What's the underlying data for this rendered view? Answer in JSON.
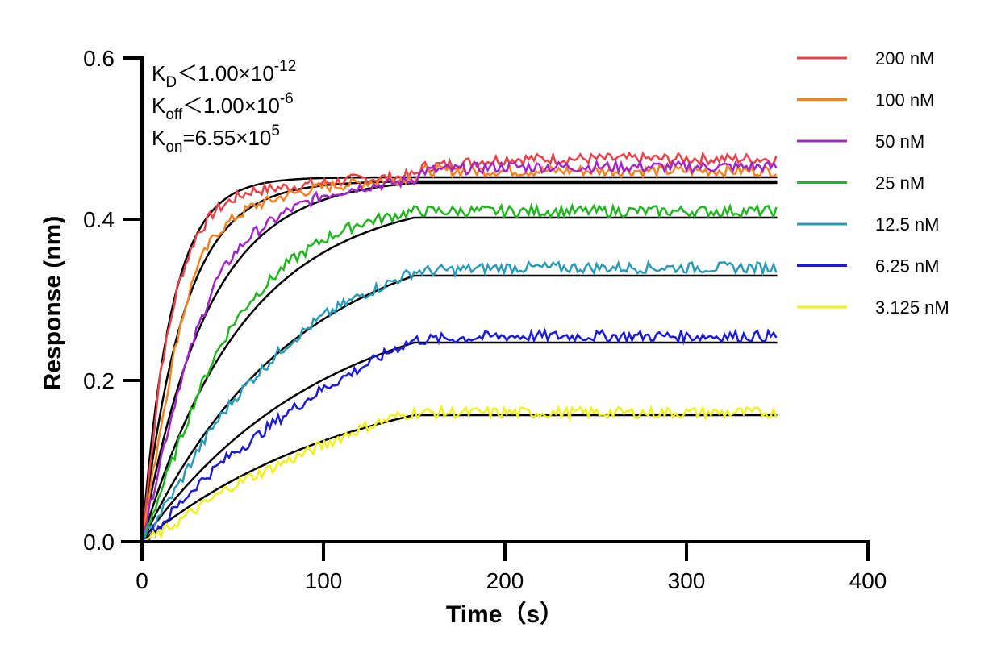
{
  "chart_data": {
    "type": "line",
    "xlabel": "Time（s）",
    "ylabel": "Response (nm)",
    "xlim": [
      0,
      400
    ],
    "ylim": [
      0,
      0.6
    ],
    "x_ticks": [
      0,
      100,
      200,
      300,
      400
    ],
    "x_tick_labels": [
      "0",
      "100",
      "200",
      "300",
      "400"
    ],
    "y_ticks": [
      0.0,
      0.2,
      0.4,
      0.6
    ],
    "y_tick_labels": [
      "0.0",
      "0.2",
      "0.4",
      "0.6"
    ],
    "grid": false,
    "legend_position": "top-right",
    "annotations": [
      {
        "main": "K",
        "sub": "D",
        "rest": "＜1.00×10",
        "sup": "-12"
      },
      {
        "main": "K",
        "sub": "off",
        "rest": "＜1.00×10",
        "sup": "-6"
      },
      {
        "main": "K",
        "sub": "on",
        "rest": "=6.55×10",
        "sup": "5"
      }
    ],
    "association_end": 150,
    "series": [
      {
        "name": "200 nM",
        "color": "#e8434a",
        "plateau": 0.47,
        "fit": 0.452,
        "points": [
          [
            0,
            0
          ],
          [
            10,
            0.21
          ],
          [
            20,
            0.32
          ],
          [
            30,
            0.38
          ],
          [
            40,
            0.41
          ],
          [
            50,
            0.425
          ],
          [
            60,
            0.435
          ],
          [
            80,
            0.44
          ],
          [
            100,
            0.445
          ],
          [
            120,
            0.45
          ],
          [
            140,
            0.452
          ],
          [
            150,
            0.455
          ],
          [
            155,
            0.465
          ],
          [
            200,
            0.475
          ],
          [
            250,
            0.475
          ],
          [
            300,
            0.475
          ],
          [
            350,
            0.475
          ]
        ]
      },
      {
        "name": "100 nM",
        "color": "#f58220",
        "plateau": 0.46,
        "fit": 0.447,
        "points": [
          [
            0,
            0
          ],
          [
            10,
            0.14
          ],
          [
            20,
            0.26
          ],
          [
            30,
            0.34
          ],
          [
            40,
            0.38
          ],
          [
            50,
            0.4
          ],
          [
            60,
            0.415
          ],
          [
            80,
            0.43
          ],
          [
            100,
            0.44
          ],
          [
            120,
            0.445
          ],
          [
            140,
            0.45
          ],
          [
            150,
            0.452
          ],
          [
            155,
            0.46
          ],
          [
            200,
            0.46
          ],
          [
            250,
            0.46
          ],
          [
            300,
            0.46
          ],
          [
            350,
            0.46
          ]
        ]
      },
      {
        "name": "50 nM",
        "color": "#a125c8",
        "plateau": 0.465,
        "fit": 0.445,
        "points": [
          [
            0,
            0
          ],
          [
            10,
            0.1
          ],
          [
            20,
            0.19
          ],
          [
            30,
            0.26
          ],
          [
            40,
            0.32
          ],
          [
            50,
            0.355
          ],
          [
            60,
            0.38
          ],
          [
            80,
            0.41
          ],
          [
            100,
            0.43
          ],
          [
            120,
            0.44
          ],
          [
            140,
            0.445
          ],
          [
            150,
            0.45
          ],
          [
            155,
            0.46
          ],
          [
            200,
            0.465
          ],
          [
            250,
            0.465
          ],
          [
            300,
            0.465
          ],
          [
            350,
            0.465
          ]
        ]
      },
      {
        "name": "25 nM",
        "color": "#22b522",
        "plateau": 0.41,
        "fit": 0.402,
        "points": [
          [
            0,
            0
          ],
          [
            10,
            0.06
          ],
          [
            20,
            0.12
          ],
          [
            30,
            0.18
          ],
          [
            40,
            0.23
          ],
          [
            50,
            0.27
          ],
          [
            60,
            0.3
          ],
          [
            80,
            0.345
          ],
          [
            100,
            0.375
          ],
          [
            120,
            0.395
          ],
          [
            140,
            0.405
          ],
          [
            150,
            0.41
          ],
          [
            200,
            0.41
          ],
          [
            250,
            0.41
          ],
          [
            300,
            0.41
          ],
          [
            350,
            0.41
          ]
        ]
      },
      {
        "name": "12.5 nM",
        "color": "#2a9bb5",
        "plateau": 0.34,
        "fit": 0.33,
        "points": [
          [
            0,
            0
          ],
          [
            10,
            0.035
          ],
          [
            20,
            0.07
          ],
          [
            30,
            0.11
          ],
          [
            40,
            0.145
          ],
          [
            50,
            0.175
          ],
          [
            60,
            0.2
          ],
          [
            80,
            0.245
          ],
          [
            100,
            0.28
          ],
          [
            120,
            0.305
          ],
          [
            140,
            0.325
          ],
          [
            150,
            0.335
          ],
          [
            200,
            0.34
          ],
          [
            250,
            0.34
          ],
          [
            300,
            0.34
          ],
          [
            350,
            0.34
          ]
        ]
      },
      {
        "name": "6.25 nM",
        "color": "#1a1ad8",
        "plateau": 0.255,
        "fit": 0.247,
        "points": [
          [
            0,
            0
          ],
          [
            10,
            0.02
          ],
          [
            20,
            0.045
          ],
          [
            30,
            0.07
          ],
          [
            40,
            0.09
          ],
          [
            50,
            0.11
          ],
          [
            60,
            0.125
          ],
          [
            80,
            0.16
          ],
          [
            100,
            0.19
          ],
          [
            120,
            0.215
          ],
          [
            140,
            0.24
          ],
          [
            150,
            0.25
          ],
          [
            200,
            0.255
          ],
          [
            250,
            0.255
          ],
          [
            300,
            0.255
          ],
          [
            350,
            0.255
          ]
        ]
      },
      {
        "name": "3.125 nM",
        "color": "#f0f01a",
        "plateau": 0.16,
        "fit": 0.157,
        "points": [
          [
            0,
            0
          ],
          [
            10,
            0.01
          ],
          [
            20,
            0.025
          ],
          [
            30,
            0.04
          ],
          [
            40,
            0.055
          ],
          [
            50,
            0.07
          ],
          [
            60,
            0.08
          ],
          [
            80,
            0.1
          ],
          [
            100,
            0.12
          ],
          [
            120,
            0.14
          ],
          [
            140,
            0.155
          ],
          [
            150,
            0.16
          ],
          [
            200,
            0.16
          ],
          [
            250,
            0.16
          ],
          [
            300,
            0.16
          ],
          [
            350,
            0.16
          ]
        ]
      }
    ]
  }
}
